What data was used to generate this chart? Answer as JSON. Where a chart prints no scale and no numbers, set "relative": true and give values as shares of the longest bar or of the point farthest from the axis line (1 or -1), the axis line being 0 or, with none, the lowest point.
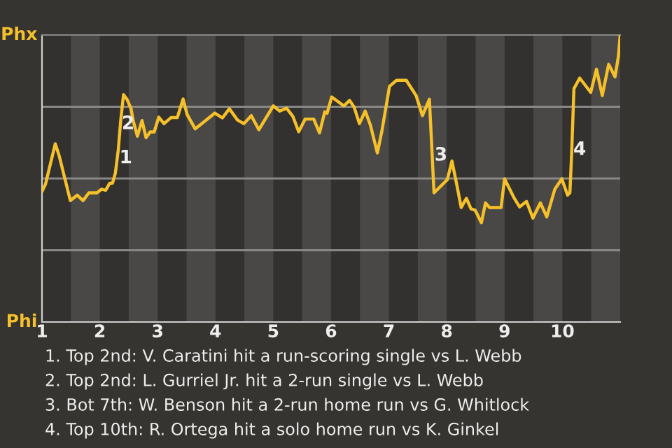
{
  "chart_data": {
    "type": "line",
    "relative": true,
    "x": [
      1.0,
      1.06,
      1.23,
      1.3,
      1.49,
      1.61,
      1.71,
      1.81,
      1.95,
      2.03,
      2.1,
      2.17,
      2.22,
      2.27,
      2.32,
      2.36,
      2.41,
      2.47,
      2.54,
      2.58,
      2.65,
      2.73,
      2.8,
      2.87,
      2.94,
      3.02,
      3.11,
      3.23,
      3.34,
      3.44,
      3.51,
      3.65,
      3.81,
      3.99,
      4.12,
      4.24,
      4.38,
      4.49,
      4.62,
      4.75,
      5.0,
      5.11,
      5.23,
      5.34,
      5.44,
      5.55,
      5.7,
      5.8,
      5.89,
      5.93,
      6.01,
      6.22,
      6.32,
      6.4,
      6.49,
      6.59,
      6.68,
      6.8,
      6.88,
      7.01,
      7.13,
      7.3,
      7.47,
      7.58,
      7.7,
      7.74,
      7.78,
      8.01,
      8.09,
      8.18,
      8.25,
      8.34,
      8.42,
      8.49,
      8.6,
      8.67,
      8.74,
      8.94,
      9.0,
      9.16,
      9.26,
      9.38,
      9.49,
      9.62,
      9.73,
      9.87,
      9.99,
      10.09,
      10.13,
      10.16,
      10.2,
      10.3,
      10.49,
      10.59,
      10.69,
      10.8,
      10.91,
      10.97,
      11.0
    ],
    "series": [
      {
        "color": "#f5c02a",
        "values": [
          0.455,
          0.48,
          0.621,
          0.577,
          0.423,
          0.442,
          0.423,
          0.45,
          0.45,
          0.463,
          0.459,
          0.483,
          0.484,
          0.52,
          0.601,
          0.699,
          0.792,
          0.776,
          0.743,
          0.699,
          0.647,
          0.702,
          0.642,
          0.662,
          0.662,
          0.714,
          0.691,
          0.712,
          0.712,
          0.777,
          0.723,
          0.673,
          0.699,
          0.728,
          0.711,
          0.743,
          0.704,
          0.691,
          0.719,
          0.67,
          0.753,
          0.735,
          0.745,
          0.716,
          0.663,
          0.707,
          0.707,
          0.659,
          0.732,
          0.727,
          0.784,
          0.753,
          0.772,
          0.748,
          0.691,
          0.735,
          0.686,
          0.589,
          0.667,
          0.821,
          0.842,
          0.842,
          0.789,
          0.719,
          0.776,
          0.615,
          0.45,
          0.496,
          0.561,
          0.472,
          0.399,
          0.431,
          0.394,
          0.39,
          0.346,
          0.415,
          0.399,
          0.399,
          0.499,
          0.434,
          0.401,
          0.42,
          0.362,
          0.415,
          0.366,
          0.463,
          0.499,
          0.442,
          0.45,
          0.585,
          0.813,
          0.85,
          0.8,
          0.881,
          0.789,
          0.898,
          0.854,
          0.927,
          1.0
        ]
      }
    ],
    "xlim": [
      1,
      11
    ],
    "xticks": [
      1,
      2,
      3,
      4,
      5,
      6,
      7,
      8,
      9,
      10
    ],
    "grid": false,
    "marker": "none",
    "line_style": "solid",
    "ref_lines": [
      {
        "axis": "y",
        "value": 0.25,
        "color": "#8a8886"
      },
      {
        "axis": "y",
        "value": 0.5,
        "color": "#8a8886"
      },
      {
        "axis": "y",
        "value": 0.75,
        "color": "#8a8886"
      }
    ],
    "bands": [
      {
        "axis": "x",
        "from": 1.5,
        "to": 2,
        "color": "#4a4846"
      },
      {
        "axis": "x",
        "from": 2.5,
        "to": 3,
        "color": "#4a4846"
      },
      {
        "axis": "x",
        "from": 3.5,
        "to": 4,
        "color": "#4a4846"
      },
      {
        "axis": "x",
        "from": 4.5,
        "to": 5,
        "color": "#4a4846"
      },
      {
        "axis": "x",
        "from": 5.5,
        "to": 6,
        "color": "#4a4846"
      },
      {
        "axis": "x",
        "from": 6.5,
        "to": 7,
        "color": "#4a4846"
      },
      {
        "axis": "x",
        "from": 7.5,
        "to": 8,
        "color": "#4a4846"
      },
      {
        "axis": "x",
        "from": 8.5,
        "to": 9,
        "color": "#4a4846"
      },
      {
        "axis": "x",
        "from": 9.5,
        "to": 10,
        "color": "#4a4846"
      },
      {
        "axis": "x",
        "from": 10.5,
        "to": 11,
        "color": "#4a4846"
      }
    ],
    "annotations": [
      "Phx",
      "Phi",
      {
        "text": "1",
        "x": 2.45,
        "y": 0.571
      },
      {
        "text": "2",
        "x": 2.49,
        "y": 0.69
      },
      {
        "text": "3",
        "x": 7.9,
        "y": 0.58
      },
      {
        "text": "4",
        "x": 10.3,
        "y": 0.6
      },
      "1. Top 2nd: V. Caratini hit a run-scoring single vs L. Webb",
      "2. Top 2nd: L. Gurriel Jr. hit a 2-run single vs L. Webb",
      "3. Bot 7th: W. Benson hit a 2-run home run vs G. Whitlock",
      "4. Top 10th: R. Ortega hit a solo home run vs K. Ginkel"
    ]
  }
}
